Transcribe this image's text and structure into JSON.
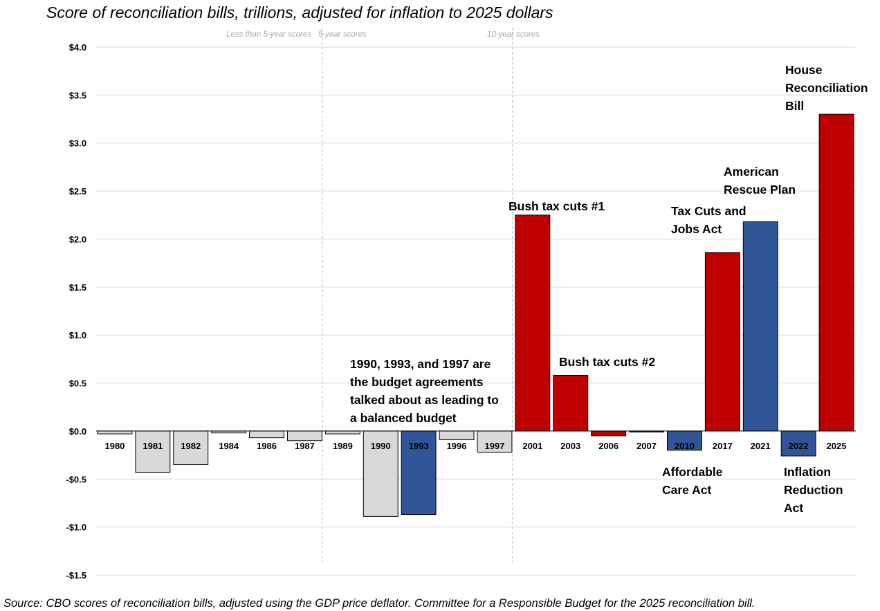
{
  "chart_data": {
    "type": "bar",
    "title": "Score of reconciliation bills, trillions, adjusted for inflation to 2025 dollars",
    "source": "Source: CBO scores of reconciliation bills, adjusted using the GDP price deflator. Committee for a Responsible Budget for the 2025 reconciliation bill.",
    "ylim": [
      -1.5,
      4.0
    ],
    "ytick_values": [
      4.0,
      3.5,
      3.0,
      2.5,
      2.0,
      1.5,
      1.0,
      0.5,
      0.0,
      -0.5,
      -1.0,
      -1.5
    ],
    "ytick_labels": [
      "$4.0",
      "$3.5",
      "$3.0",
      "$2.5",
      "$2.0",
      "$1.5",
      "$1.0",
      "$0.5",
      "$0.0",
      "-$0.5",
      "-$1.0",
      "-$1.5"
    ],
    "categories": [
      "1980",
      "1981",
      "1982",
      "1984",
      "1986",
      "1987",
      "1989",
      "1990",
      "1993",
      "1996",
      "1997",
      "2001",
      "2003",
      "2006",
      "2007",
      "2010",
      "2017",
      "2021",
      "2022",
      "2025"
    ],
    "values": [
      -0.03,
      -0.43,
      -0.35,
      -0.02,
      -0.07,
      -0.1,
      -0.03,
      -0.89,
      -0.87,
      -0.09,
      -0.22,
      2.25,
      0.58,
      -0.05,
      -0.01,
      -0.2,
      1.86,
      2.18,
      -0.26,
      3.3
    ],
    "colors": [
      "#d9d9d9",
      "#d9d9d9",
      "#d9d9d9",
      "#d9d9d9",
      "#d9d9d9",
      "#d9d9d9",
      "#d9d9d9",
      "#d9d9d9",
      "#2f5597",
      "#d9d9d9",
      "#d9d9d9",
      "#c00000",
      "#c00000",
      "#c00000",
      "#c00000",
      "#2f5597",
      "#c00000",
      "#2f5597",
      "#2f5597",
      "#c00000"
    ],
    "regions": [
      "Less than 5-year scores",
      "5-year scores",
      "10-year scores"
    ],
    "annotations": [
      {
        "lines": [
          "1990, 1993, and 1997 are",
          "the budget agreements",
          "talked about as leading to",
          "a balanced budget"
        ]
      },
      {
        "lines": [
          "Bush tax cuts #1"
        ]
      },
      {
        "lines": [
          "Bush tax cuts #2"
        ]
      },
      {
        "lines": [
          "Tax Cuts and",
          "Jobs Act"
        ]
      },
      {
        "lines": [
          "American",
          "Rescue Plan"
        ]
      },
      {
        "lines": [
          "House",
          "Reconciliation",
          "Bill"
        ]
      },
      {
        "lines": [
          "Affordable",
          "Care Act"
        ]
      },
      {
        "lines": [
          "Inflation",
          "Reduction",
          "Act"
        ]
      }
    ]
  }
}
